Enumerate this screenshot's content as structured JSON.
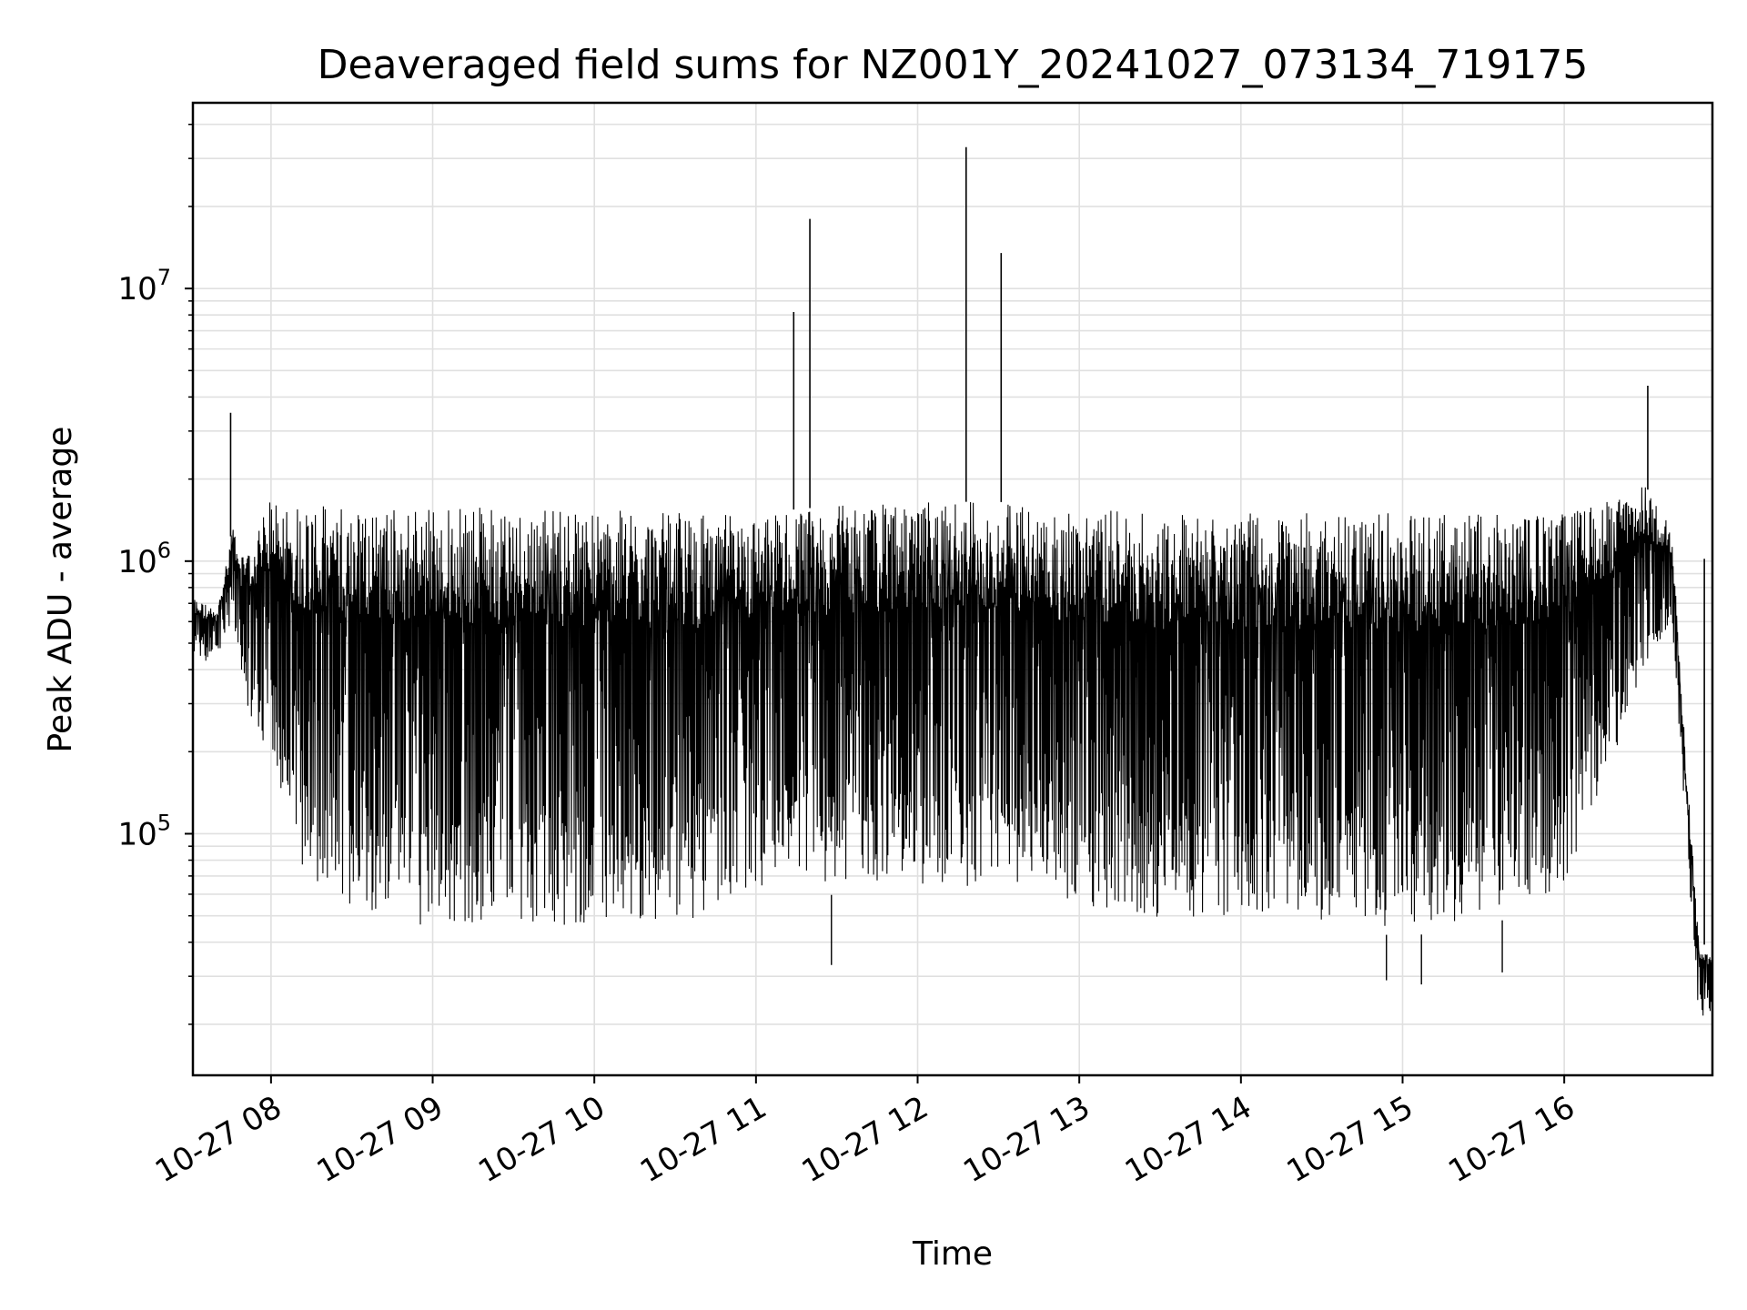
{
  "chart_data": {
    "type": "line",
    "title": "Deaveraged field sums for NZ001Y_20241027_073134_719175",
    "xlabel": "Time",
    "ylabel": "Peak ADU - average",
    "yscale": "log",
    "xlim": [
      "2024-10-27 07:31",
      "2024-10-27 16:55"
    ],
    "ylim": [
      13000,
      48000000
    ],
    "x_tick_labels": [
      "10-27 08",
      "10-27 09",
      "10-27 10",
      "10-27 11",
      "10-27 12",
      "10-27 13",
      "10-27 14",
      "10-27 15",
      "10-27 16"
    ],
    "x_tick_times": [
      "2024-10-27 08:00",
      "2024-10-27 09:00",
      "2024-10-27 10:00",
      "2024-10-27 11:00",
      "2024-10-27 12:00",
      "2024-10-27 13:00",
      "2024-10-27 14:00",
      "2024-10-27 15:00",
      "2024-10-27 16:00"
    ],
    "y_tick_labels": [
      {
        "value": 100000,
        "base": "10",
        "exp": "5"
      },
      {
        "value": 1000000,
        "base": "10",
        "exp": "6"
      },
      {
        "value": 10000000,
        "base": "10",
        "exp": "7"
      }
    ],
    "grid": true,
    "line_color": "#000000",
    "grid_color": "#e0e0e0",
    "series": [
      {
        "envelope": true,
        "x": [
          "2024-10-27 07:31",
          "2024-10-27 07:40",
          "2024-10-27 07:46",
          "2024-10-27 07:50",
          "2024-10-27 07:55",
          "2024-10-27 08:00",
          "2024-10-27 08:10",
          "2024-10-27 08:20",
          "2024-10-27 08:30",
          "2024-10-27 09:00",
          "2024-10-27 09:30",
          "2024-10-27 10:00",
          "2024-10-27 10:30",
          "2024-10-27 11:00",
          "2024-10-27 11:30",
          "2024-10-27 12:00",
          "2024-10-27 12:30",
          "2024-10-27 13:00",
          "2024-10-27 13:30",
          "2024-10-27 14:00",
          "2024-10-27 14:30",
          "2024-10-27 15:00",
          "2024-10-27 15:30",
          "2024-10-27 16:00",
          "2024-10-27 16:20",
          "2024-10-27 16:30",
          "2024-10-27 16:40",
          "2024-10-27 16:45",
          "2024-10-27 16:50",
          "2024-10-27 16:55"
        ],
        "upper": [
          750000,
          650000,
          1400000,
          1000000,
          1300000,
          1700000,
          1650000,
          1600000,
          1600000,
          1600000,
          1600000,
          1550000,
          1500000,
          1500000,
          1600000,
          1650000,
          1650000,
          1550000,
          1500000,
          1500000,
          1500000,
          1500000,
          1500000,
          1500000,
          1700000,
          1900000,
          1300000,
          200000,
          40000,
          38000
        ],
        "lower": [
          400000,
          450000,
          600000,
          300000,
          220000,
          200000,
          70000,
          50000,
          50000,
          42000,
          45000,
          42000,
          42000,
          55000,
          60000,
          60000,
          60000,
          50000,
          45000,
          45000,
          45000,
          42000,
          45000,
          60000,
          200000,
          400000,
          600000,
          100000,
          20000,
          22000
        ]
      }
    ],
    "spikes": [
      {
        "x": "2024-10-27 07:45",
        "y": 3500000
      },
      {
        "x": "2024-10-27 11:14",
        "y": 8200000
      },
      {
        "x": "2024-10-27 11:20",
        "y": 18000000
      },
      {
        "x": "2024-10-27 12:18",
        "y": 33000000
      },
      {
        "x": "2024-10-27 12:31",
        "y": 13500000
      },
      {
        "x": "2024-10-27 16:31",
        "y": 4400000
      },
      {
        "x": "2024-10-27 16:52",
        "y": 1020000
      }
    ],
    "dips": [
      {
        "x": "2024-10-27 11:28",
        "y": 33000
      },
      {
        "x": "2024-10-27 14:54",
        "y": 29000
      },
      {
        "x": "2024-10-27 15:07",
        "y": 28000
      },
      {
        "x": "2024-10-27 15:37",
        "y": 31000
      }
    ]
  }
}
